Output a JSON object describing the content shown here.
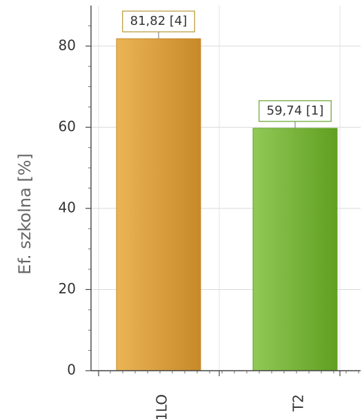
{
  "chart_data": {
    "type": "bar",
    "title": "",
    "xlabel": "",
    "ylabel": "Ef. szkolna [%]",
    "ylim": [
      0,
      90
    ],
    "yticks": [
      0,
      20,
      40,
      60,
      80
    ],
    "grid": true,
    "categories": [
      "1LO",
      "T2"
    ],
    "values": [
      81.82,
      59.74
    ],
    "data_labels": [
      "81,82 [4]",
      "59,74 [1]"
    ],
    "colors": [
      {
        "main": "#d9a23a",
        "light": "#eab455",
        "dark": "#c7892a",
        "label_border": "#b7962f"
      },
      {
        "main": "#7fb83f",
        "light": "#92c957",
        "dark": "#5f9f20",
        "label_border": "#66a12a"
      }
    ]
  }
}
